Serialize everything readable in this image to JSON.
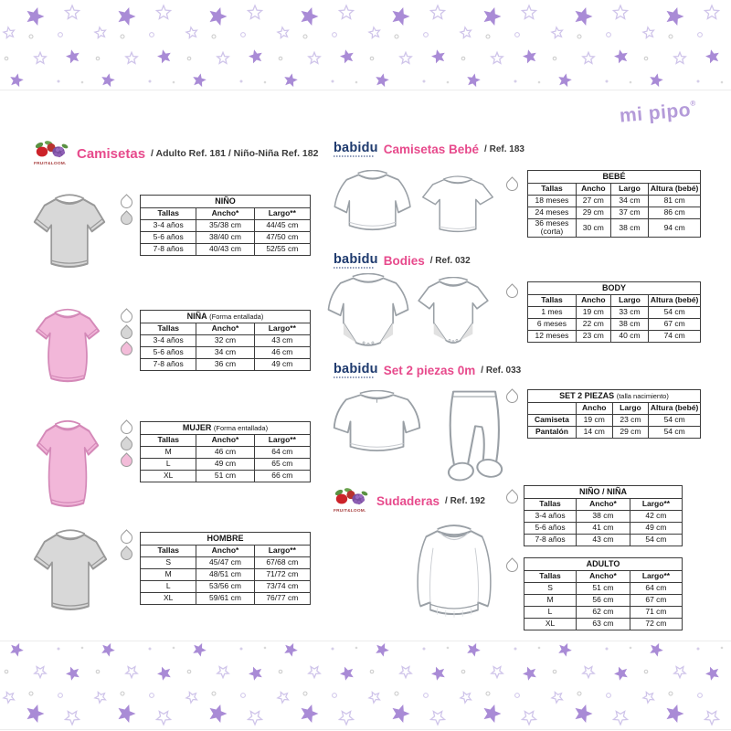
{
  "brand": {
    "name": "mi pipo",
    "registered": "®"
  },
  "logos": {
    "fruit_of_the_loom": "FRUIT&LOOM.",
    "babidu": "babidu"
  },
  "colors": {
    "accent_pink": "#e74a8c",
    "babidu_navy": "#1e3a6e",
    "mipipo_purple": "#b49bd9",
    "star_purple": "#a98bd6",
    "drop_white": "#ffffff",
    "drop_grey": "#d6d6d6",
    "drop_pink": "#f3bcd9"
  },
  "icons": {
    "water_drop": "teardrop swatch shape",
    "star_filled": "filled 5-point star",
    "star_outline": "outlined 5-point star"
  },
  "sections": {
    "camisetas": {
      "title": "Camisetas",
      "subtitle": "/ Adulto Ref. 181 / Niño-Niña Ref. 182"
    },
    "camisetas_bebe": {
      "title": "Camisetas Bebé",
      "ref": "/ Ref. 183"
    },
    "bodies": {
      "title": "Bodies",
      "ref": "/ Ref. 032"
    },
    "set_2_piezas": {
      "title": "Set 2 piezas 0m",
      "ref": "/ Ref. 033"
    },
    "sudaderas": {
      "title": "Sudaderas",
      "ref": "/ Ref. 192"
    }
  },
  "tables": {
    "nino": {
      "title": "NIÑO",
      "headers": [
        "Tallas",
        "Ancho*",
        "Largo**"
      ],
      "rows": [
        [
          "3-4 años",
          "35/38 cm",
          "44/45 cm"
        ],
        [
          "5-6 años",
          "38/40 cm",
          "47/50 cm"
        ],
        [
          "7-8 años",
          "40/43 cm",
          "52/55 cm"
        ]
      ],
      "drops": [
        "white",
        "grey"
      ]
    },
    "nina": {
      "title": "NIÑA",
      "note": "(Forma entallada)",
      "headers": [
        "Tallas",
        "Ancho*",
        "Largo**"
      ],
      "rows": [
        [
          "3-4 años",
          "32 cm",
          "43 cm"
        ],
        [
          "5-6 años",
          "34 cm",
          "46 cm"
        ],
        [
          "7-8 años",
          "36 cm",
          "49 cm"
        ]
      ],
      "drops": [
        "white",
        "grey",
        "pink"
      ]
    },
    "mujer": {
      "title": "MUJER",
      "note": "(Forma entallada)",
      "headers": [
        "Tallas",
        "Ancho*",
        "Largo**"
      ],
      "rows": [
        [
          "M",
          "46 cm",
          "64 cm"
        ],
        [
          "L",
          "49 cm",
          "65 cm"
        ],
        [
          "XL",
          "51 cm",
          "66 cm"
        ]
      ],
      "drops": [
        "white",
        "grey",
        "pink"
      ]
    },
    "hombre": {
      "title": "HOMBRE",
      "headers": [
        "Tallas",
        "Ancho*",
        "Largo**"
      ],
      "rows": [
        [
          "S",
          "45/47 cm",
          "67/68 cm"
        ],
        [
          "M",
          "48/51 cm",
          "71/72 cm"
        ],
        [
          "L",
          "53/56 cm",
          "73/74 cm"
        ],
        [
          "XL",
          "59/61 cm",
          "76/77 cm"
        ]
      ],
      "drops": [
        "white",
        "grey"
      ]
    },
    "bebe": {
      "title": "BEBÉ",
      "headers": [
        "Tallas",
        "Ancho",
        "Largo",
        "Altura (bebé)"
      ],
      "rows": [
        [
          "18 meses",
          "27 cm",
          "34 cm",
          "81 cm"
        ],
        [
          "24 meses",
          "29 cm",
          "37 cm",
          "86 cm"
        ],
        [
          "36 meses (corta)",
          "30 cm",
          "38 cm",
          "94 cm"
        ]
      ],
      "drops": [
        "white"
      ]
    },
    "body": {
      "title": "BODY",
      "headers": [
        "Tallas",
        "Ancho",
        "Largo",
        "Altura (bebé)"
      ],
      "rows": [
        [
          "1 mes",
          "19 cm",
          "33 cm",
          "54 cm"
        ],
        [
          "6 meses",
          "22 cm",
          "38 cm",
          "67 cm"
        ],
        [
          "12 meses",
          "23 cm",
          "40 cm",
          "74 cm"
        ]
      ],
      "drops": [
        "white"
      ]
    },
    "set_piezas": {
      "title": "SET 2 PIEZAS",
      "note": "(talla nacimiento)",
      "bold_first_col": true,
      "headers": [
        "",
        "Ancho",
        "Largo",
        "Altura (bebé)"
      ],
      "rows": [
        [
          "Camiseta",
          "19 cm",
          "23 cm",
          "54 cm"
        ],
        [
          "Pantalón",
          "14 cm",
          "29 cm",
          "54 cm"
        ]
      ],
      "drops": [
        "white"
      ]
    },
    "sudadera_ninos": {
      "title": "NIÑO / NIÑA",
      "headers": [
        "Tallas",
        "Ancho*",
        "Largo**"
      ],
      "rows": [
        [
          "3-4 años",
          "38 cm",
          "42 cm"
        ],
        [
          "5-6 años",
          "41 cm",
          "49 cm"
        ],
        [
          "7-8 años",
          "43 cm",
          "54 cm"
        ]
      ],
      "drops": [
        "white"
      ]
    },
    "sudadera_adulto": {
      "title": "ADULTO",
      "headers": [
        "Tallas",
        "Ancho*",
        "Largo**"
      ],
      "rows": [
        [
          "S",
          "51 cm",
          "64 cm"
        ],
        [
          "M",
          "56 cm",
          "67 cm"
        ],
        [
          "L",
          "62 cm",
          "71 cm"
        ],
        [
          "XL",
          "63 cm",
          "72 cm"
        ]
      ],
      "drops": [
        "white"
      ]
    }
  }
}
